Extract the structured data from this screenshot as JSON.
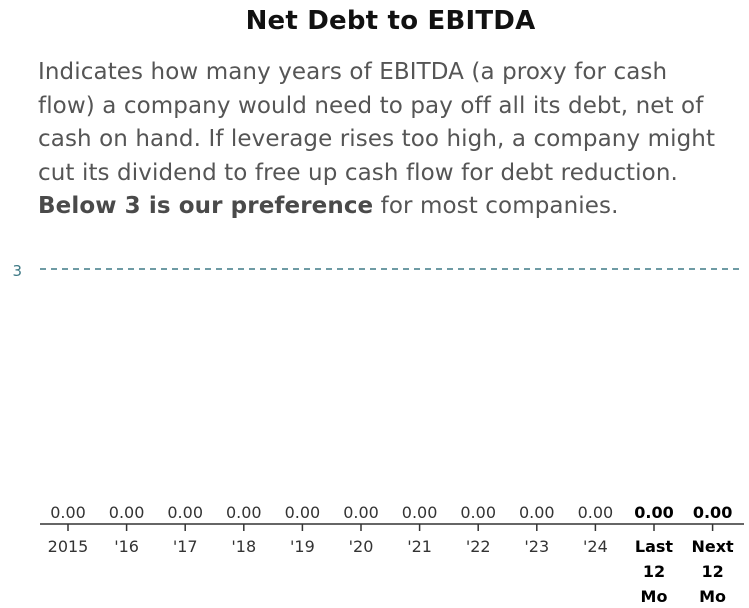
{
  "chart_data": {
    "type": "bar",
    "title": "Net Debt to EBITDA",
    "description": {
      "text": "Indicates how many years of EBITDA (a proxy for cash flow) a company would need to pay off all its debt, net of cash on hand. If leverage rises too high, a company might cut its dividend to free up cash flow for debt reduction.",
      "bold": "Below 3 is our preference",
      "tail": "for most companies."
    },
    "categories": [
      "2015",
      "'16",
      "'17",
      "'18",
      "'19",
      "'20",
      "'21",
      "'22",
      "'23",
      "'24",
      "Last 12 Mo",
      "Next 12 Mo"
    ],
    "values": [
      0.0,
      0.0,
      0.0,
      0.0,
      0.0,
      0.0,
      0.0,
      0.0,
      0.0,
      0.0,
      0.0,
      0.0
    ],
    "value_labels": [
      "0.00",
      "0.00",
      "0.00",
      "0.00",
      "0.00",
      "0.00",
      "0.00",
      "0.00",
      "0.00",
      "0.00",
      "0.00",
      "0.00"
    ],
    "emphasized_categories": [
      "Last 12 Mo",
      "Next 12 Mo"
    ],
    "reference_line": {
      "value": 3,
      "label": "3",
      "style": "dashed",
      "color": "#3f7a86"
    },
    "ylim": [
      0,
      3
    ],
    "xlabel": "",
    "ylabel": "",
    "grid": false,
    "axis_color": "#333333",
    "text_color": "#333333"
  }
}
